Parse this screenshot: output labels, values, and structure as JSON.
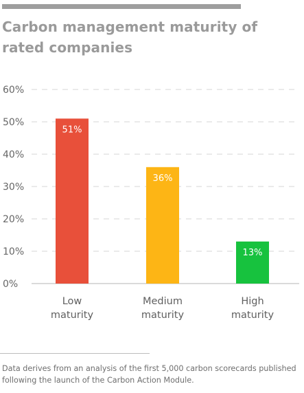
{
  "chart_data": {
    "type": "bar",
    "title": "Carbon management maturity of rated companies",
    "categories": [
      [
        "Low",
        "maturity"
      ],
      [
        "Medium",
        "maturity"
      ],
      [
        "High",
        "maturity"
      ]
    ],
    "values": [
      51,
      36,
      13
    ],
    "data_labels": [
      "51%",
      "36%",
      "13%"
    ],
    "colors": [
      "#e8503a",
      "#fdb515",
      "#17c23e"
    ],
    "ylim": [
      0,
      60
    ],
    "yticks": [
      0,
      10,
      20,
      30,
      40,
      50,
      60
    ],
    "ytick_labels": [
      "0%",
      "10%",
      "20%",
      "30%",
      "40%",
      "50%",
      "60%"
    ],
    "grid": true,
    "xlabel": "",
    "ylabel": ""
  },
  "footnote": "Data derives from an analysis of the first 5,000 carbon scorecards published following the launch of the Carbon Action Module."
}
